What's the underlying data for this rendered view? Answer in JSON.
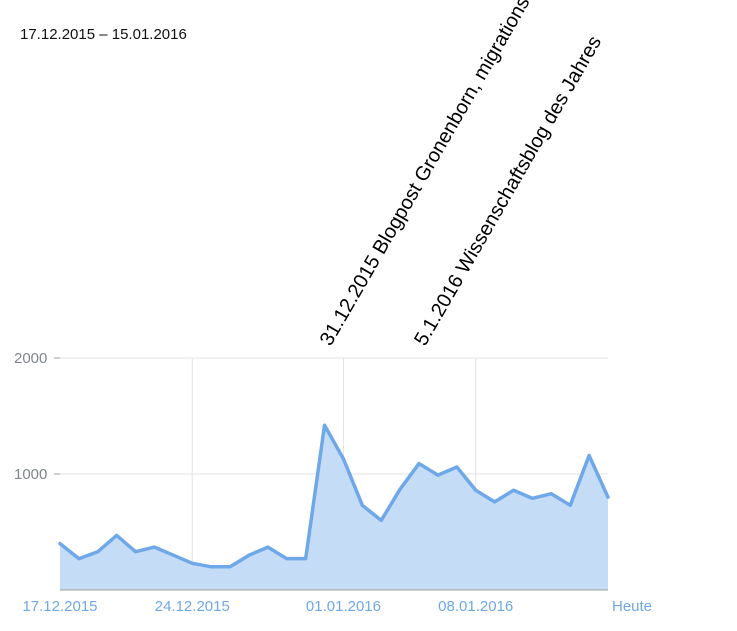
{
  "header": {
    "date_range": "17.12.2015 – 15.01.2016"
  },
  "colors": {
    "line": "#6fa8e8",
    "area": "#c5dcf6",
    "grid": "#e3e3e3",
    "axis": "#9e9e9e",
    "x_tick_text": "#6fa8e8",
    "y_tick_text": "#80868b",
    "annotation_text": "#000000"
  },
  "chart_data": {
    "type": "area",
    "title": "",
    "xlabel": "",
    "ylabel": "",
    "ylim": [
      0,
      2000
    ],
    "y_ticks": [
      {
        "value": 2000,
        "label": "2000"
      },
      {
        "value": 1000,
        "label": "1000"
      }
    ],
    "x_ticks": [
      {
        "index": 0,
        "label": "17.12.2015"
      },
      {
        "index": 7,
        "label": "24.12.2015"
      },
      {
        "index": 15,
        "label": "01.01.2016"
      },
      {
        "index": 22,
        "label": "08.01.2016"
      },
      {
        "index": 29,
        "label": "Heute"
      }
    ],
    "x_gridlines_at_index": [
      7,
      15,
      22
    ],
    "grid": true,
    "legend": "none",
    "x": [
      "17.12.2015",
      "18.12.2015",
      "19.12.2015",
      "20.12.2015",
      "21.12.2015",
      "22.12.2015",
      "23.12.2015",
      "24.12.2015",
      "25.12.2015",
      "26.12.2015",
      "27.12.2015",
      "28.12.2015",
      "29.12.2015",
      "30.12.2015",
      "31.12.2015",
      "01.01.2016",
      "02.01.2016",
      "03.01.2016",
      "04.01.2016",
      "05.01.2016",
      "06.01.2016",
      "07.01.2016",
      "08.01.2016",
      "09.01.2016",
      "10.01.2016",
      "11.01.2016",
      "12.01.2016",
      "13.01.2016",
      "14.01.2016",
      "15.01.2016"
    ],
    "series": [
      {
        "values": [
          400,
          270,
          330,
          470,
          330,
          370,
          300,
          230,
          200,
          200,
          300,
          370,
          270,
          270,
          1420,
          1130,
          730,
          600,
          870,
          1090,
          990,
          1060,
          860,
          760,
          860,
          790,
          830,
          730,
          1160,
          800
        ]
      }
    ],
    "annotations": [
      {
        "index": 14,
        "label": "31.12.2015 Blogpost Gronenborn, migrations"
      },
      {
        "index": 19,
        "label": "5.1.2016 Wissenschaftsblog des Jahres"
      }
    ]
  }
}
